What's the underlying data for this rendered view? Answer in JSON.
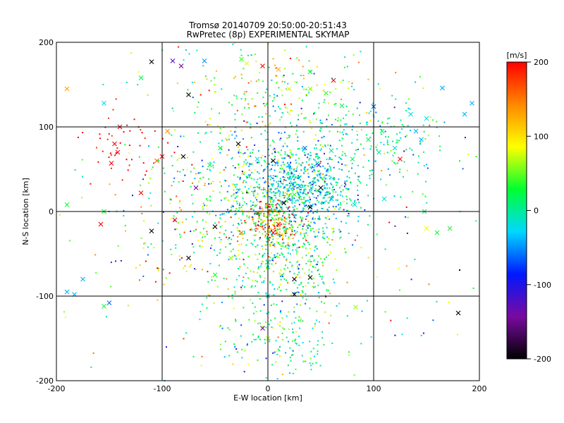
{
  "chart_data": {
    "type": "scatter",
    "title": "Tromsø 20140709 20:50:00-20:51:43",
    "subtitle": "RwPretec (8p) EXPERIMENTAL SKYMAP",
    "xlabel": "E-W location [km]",
    "ylabel": "N-S location [km]",
    "xlim": [
      -200,
      200
    ],
    "ylim": [
      -200,
      200
    ],
    "x_ticks": [
      -200,
      -100,
      0,
      100,
      200
    ],
    "y_ticks": [
      -200,
      -100,
      0,
      100,
      200
    ],
    "x_tick_labels": [
      "-200",
      "-100",
      "0",
      "100",
      "200"
    ],
    "y_tick_labels": [
      "-200",
      "-100",
      "0",
      "100",
      "200"
    ],
    "grid": true,
    "marker_types": [
      "dot",
      "cross"
    ],
    "colorbar": {
      "label": "[m/s]",
      "range": [
        -200,
        200
      ],
      "ticks": [
        200,
        100,
        0,
        -100,
        -200
      ],
      "tick_labels": [
        "200",
        "100",
        "0",
        "-100",
        "-200"
      ],
      "colormap": [
        "#000000",
        "#7a0aa0",
        "#0018ff",
        "#00d8ff",
        "#00ff30",
        "#ffff00",
        "#ff8800",
        "#ff0000"
      ]
    },
    "crosses": [
      {
        "x": -190,
        "y": 145,
        "v": 130
      },
      {
        "x": -155,
        "y": 128,
        "v": -20
      },
      {
        "x": -120,
        "y": 158,
        "v": 20
      },
      {
        "x": -110,
        "y": 177,
        "v": -200
      },
      {
        "x": -90,
        "y": 178,
        "v": -120
      },
      {
        "x": -82,
        "y": 172,
        "v": -150
      },
      {
        "x": -75,
        "y": 138,
        "v": -200
      },
      {
        "x": -60,
        "y": 178,
        "v": -50
      },
      {
        "x": -25,
        "y": 180,
        "v": 40
      },
      {
        "x": -20,
        "y": 175,
        "v": 80
      },
      {
        "x": -5,
        "y": 172,
        "v": 200
      },
      {
        "x": 10,
        "y": 168,
        "v": 120
      },
      {
        "x": 40,
        "y": 165,
        "v": 30
      },
      {
        "x": 62,
        "y": 155,
        "v": 200
      },
      {
        "x": 20,
        "y": 145,
        "v": 90
      },
      {
        "x": 40,
        "y": 145,
        "v": 60
      },
      {
        "x": 55,
        "y": 140,
        "v": 40
      },
      {
        "x": 70,
        "y": 125,
        "v": 20
      },
      {
        "x": 100,
        "y": 124,
        "v": -60
      },
      {
        "x": 135,
        "y": 115,
        "v": -20
      },
      {
        "x": 150,
        "y": 110,
        "v": -20
      },
      {
        "x": 165,
        "y": 146,
        "v": -40
      },
      {
        "x": 186,
        "y": 115,
        "v": -40
      },
      {
        "x": 193,
        "y": 128,
        "v": -40
      },
      {
        "x": -140,
        "y": 100,
        "v": 200
      },
      {
        "x": -145,
        "y": 80,
        "v": 200
      },
      {
        "x": -142,
        "y": 70,
        "v": 200
      },
      {
        "x": -148,
        "y": 57,
        "v": 200
      },
      {
        "x": -120,
        "y": 22,
        "v": 200
      },
      {
        "x": -100,
        "y": 65,
        "v": 200
      },
      {
        "x": -95,
        "y": 95,
        "v": 140
      },
      {
        "x": -105,
        "y": 60,
        "v": 160
      },
      {
        "x": -80,
        "y": 65,
        "v": -200
      },
      {
        "x": -68,
        "y": 28,
        "v": -150
      },
      {
        "x": -55,
        "y": 55,
        "v": 20
      },
      {
        "x": -45,
        "y": 75,
        "v": 20
      },
      {
        "x": -28,
        "y": 80,
        "v": -200
      },
      {
        "x": -10,
        "y": 62,
        "v": -20
      },
      {
        "x": 5,
        "y": 60,
        "v": -200
      },
      {
        "x": 20,
        "y": 55,
        "v": -40
      },
      {
        "x": 48,
        "y": 55,
        "v": -120
      },
      {
        "x": 35,
        "y": 75,
        "v": -60
      },
      {
        "x": 60,
        "y": 72,
        "v": 0
      },
      {
        "x": 80,
        "y": 62,
        "v": 10
      },
      {
        "x": 95,
        "y": 85,
        "v": 20
      },
      {
        "x": 108,
        "y": 95,
        "v": 20
      },
      {
        "x": 120,
        "y": 75,
        "v": -20
      },
      {
        "x": 125,
        "y": 62,
        "v": 200
      },
      {
        "x": 145,
        "y": 85,
        "v": -40
      },
      {
        "x": 140,
        "y": 95,
        "v": -40
      },
      {
        "x": 105,
        "y": 70,
        "v": 0
      },
      {
        "x": -190,
        "y": 8,
        "v": 30
      },
      {
        "x": -155,
        "y": 0,
        "v": 30
      },
      {
        "x": -158,
        "y": -15,
        "v": 200
      },
      {
        "x": -110,
        "y": -23,
        "v": -200
      },
      {
        "x": -88,
        "y": -10,
        "v": 200
      },
      {
        "x": -50,
        "y": -18,
        "v": -200
      },
      {
        "x": -25,
        "y": -25,
        "v": 150
      },
      {
        "x": 5,
        "y": -25,
        "v": 200
      },
      {
        "x": 10,
        "y": -15,
        "v": 200
      },
      {
        "x": 15,
        "y": 10,
        "v": -200
      },
      {
        "x": 25,
        "y": 20,
        "v": 40
      },
      {
        "x": 40,
        "y": 5,
        "v": -200
      },
      {
        "x": 30,
        "y": 30,
        "v": -40
      },
      {
        "x": 50,
        "y": 28,
        "v": -200
      },
      {
        "x": 60,
        "y": 15,
        "v": -40
      },
      {
        "x": 82,
        "y": 8,
        "v": -20
      },
      {
        "x": 110,
        "y": 15,
        "v": -20
      },
      {
        "x": 148,
        "y": 0,
        "v": 20
      },
      {
        "x": 150,
        "y": -20,
        "v": 90
      },
      {
        "x": 160,
        "y": -25,
        "v": 30
      },
      {
        "x": 172,
        "y": -20,
        "v": 30
      },
      {
        "x": -75,
        "y": -55,
        "v": -200
      },
      {
        "x": -50,
        "y": -75,
        "v": 30
      },
      {
        "x": -35,
        "y": -55,
        "v": 60
      },
      {
        "x": 0,
        "y": -60,
        "v": 20
      },
      {
        "x": 25,
        "y": -80,
        "v": -200
      },
      {
        "x": 40,
        "y": -78,
        "v": -200
      },
      {
        "x": 25,
        "y": -98,
        "v": -200
      },
      {
        "x": 0,
        "y": -100,
        "v": -20
      },
      {
        "x": -190,
        "y": -95,
        "v": -40
      },
      {
        "x": -183,
        "y": -98,
        "v": -40
      },
      {
        "x": -175,
        "y": -80,
        "v": -40
      },
      {
        "x": -150,
        "y": -108,
        "v": -60
      },
      {
        "x": -155,
        "y": -112,
        "v": 30
      },
      {
        "x": 83,
        "y": -113,
        "v": 60
      },
      {
        "x": 180,
        "y": -120,
        "v": -200
      },
      {
        "x": -5,
        "y": -138,
        "v": -150
      },
      {
        "x": 0,
        "y": -150,
        "v": 70
      }
    ],
    "dot_clusters": [
      {
        "cx": 28,
        "cy": 28,
        "sx": 28,
        "sy": 26,
        "n": 700,
        "v": -25,
        "vs": 35
      },
      {
        "cx": 5,
        "cy": -15,
        "sx": 12,
        "sy": 18,
        "n": 200,
        "v": 140,
        "vs": 60
      },
      {
        "cx": 15,
        "cy": -45,
        "sx": 28,
        "sy": 35,
        "n": 350,
        "v": 25,
        "vs": 45
      },
      {
        "cx": 0,
        "cy": 60,
        "sx": 55,
        "sy": 60,
        "n": 420,
        "v": 20,
        "vs": 55
      },
      {
        "cx": 10,
        "cy": 140,
        "sx": 45,
        "sy": 28,
        "n": 110,
        "v": 70,
        "vs": 60
      },
      {
        "cx": 115,
        "cy": 85,
        "sx": 30,
        "sy": 25,
        "n": 130,
        "v": 0,
        "vs": 30
      },
      {
        "cx": -140,
        "cy": 70,
        "sx": 20,
        "sy": 28,
        "n": 45,
        "v": 195,
        "vs": 15
      },
      {
        "cx": -40,
        "cy": 0,
        "sx": 45,
        "sy": 45,
        "n": 220,
        "v": 50,
        "vs": 80
      },
      {
        "cx": 10,
        "cy": -150,
        "sx": 30,
        "sy": 30,
        "n": 170,
        "v": 10,
        "vs": 40
      },
      {
        "cx": 0,
        "cy": 0,
        "sx": 110,
        "sy": 110,
        "n": 260,
        "v": 20,
        "vs": 90
      }
    ]
  }
}
